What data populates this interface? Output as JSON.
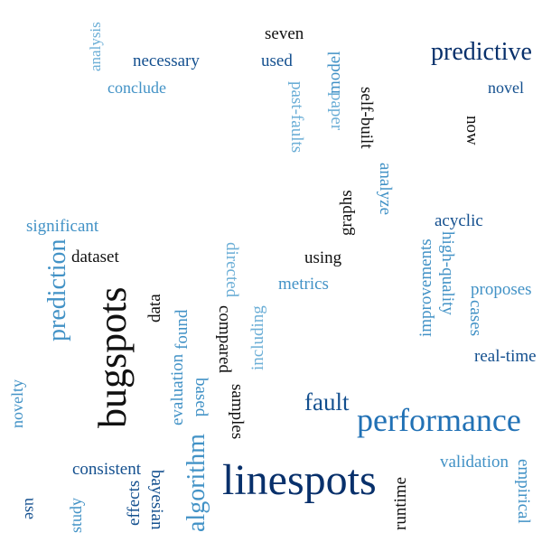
{
  "palette": {
    "darkest": "#08306b",
    "black": "#111111",
    "dark": "#14508f",
    "mid": "#2171b5",
    "light": "#4292c6",
    "lightest": "#6baed6"
  },
  "words": [
    {
      "text": "linespots",
      "color": "darkest",
      "weight": 10
    },
    {
      "text": "bugspots",
      "color": "black",
      "weight": 9
    },
    {
      "text": "performance",
      "color": "mid",
      "weight": 8
    },
    {
      "text": "prediction",
      "color": "light",
      "weight": 6
    },
    {
      "text": "predictive",
      "color": "darkest",
      "weight": 6
    },
    {
      "text": "algorithm",
      "color": "light",
      "weight": 6
    },
    {
      "text": "fault",
      "color": "dark",
      "weight": 5
    },
    {
      "text": "seven",
      "color": "black",
      "weight": 3
    },
    {
      "text": "used",
      "color": "dark",
      "weight": 3
    },
    {
      "text": "necessary",
      "color": "dark",
      "weight": 3
    },
    {
      "text": "analysis",
      "color": "lightest",
      "weight": 2
    },
    {
      "text": "conclude",
      "color": "light",
      "weight": 3
    },
    {
      "text": "novel",
      "color": "dark",
      "weight": 3
    },
    {
      "text": "model",
      "color": "light",
      "weight": 3
    },
    {
      "text": "paper",
      "color": "lightest",
      "weight": 3
    },
    {
      "text": "past-faults",
      "color": "lightest",
      "weight": 3
    },
    {
      "text": "self-built",
      "color": "black",
      "weight": 3
    },
    {
      "text": "now",
      "color": "black",
      "weight": 3
    },
    {
      "text": "analyze",
      "color": "light",
      "weight": 3
    },
    {
      "text": "graphs",
      "color": "black",
      "weight": 3
    },
    {
      "text": "significant",
      "color": "light",
      "weight": 3
    },
    {
      "text": "dataset",
      "color": "black",
      "weight": 3
    },
    {
      "text": "using",
      "color": "black",
      "weight": 3
    },
    {
      "text": "acyclic",
      "color": "dark",
      "weight": 3
    },
    {
      "text": "high-quality",
      "color": "light",
      "weight": 3
    },
    {
      "text": "improvements",
      "color": "light",
      "weight": 3
    },
    {
      "text": "metrics",
      "color": "light",
      "weight": 3
    },
    {
      "text": "directed",
      "color": "lightest",
      "weight": 3
    },
    {
      "text": "proposes",
      "color": "light",
      "weight": 3
    },
    {
      "text": "cases",
      "color": "light",
      "weight": 3
    },
    {
      "text": "data",
      "color": "black",
      "weight": 3
    },
    {
      "text": "found",
      "color": "light",
      "weight": 3
    },
    {
      "text": "evaluation",
      "color": "light",
      "weight": 3
    },
    {
      "text": "compared",
      "color": "black",
      "weight": 3
    },
    {
      "text": "including",
      "color": "lightest",
      "weight": 3
    },
    {
      "text": "real-time",
      "color": "dark",
      "weight": 3
    },
    {
      "text": "based",
      "color": "light",
      "weight": 3
    },
    {
      "text": "samples",
      "color": "black",
      "weight": 3
    },
    {
      "text": "novelty",
      "color": "light",
      "weight": 3
    },
    {
      "text": "consistent",
      "color": "dark",
      "weight": 3
    },
    {
      "text": "validation",
      "color": "light",
      "weight": 3
    },
    {
      "text": "empirical",
      "color": "light",
      "weight": 3
    },
    {
      "text": "effects",
      "color": "dark",
      "weight": 3
    },
    {
      "text": "bayesian",
      "color": "dark",
      "weight": 3
    },
    {
      "text": "runtime",
      "color": "black",
      "weight": 3
    },
    {
      "text": "use",
      "color": "dark",
      "weight": 2
    },
    {
      "text": "study",
      "color": "light",
      "weight": 2
    }
  ]
}
